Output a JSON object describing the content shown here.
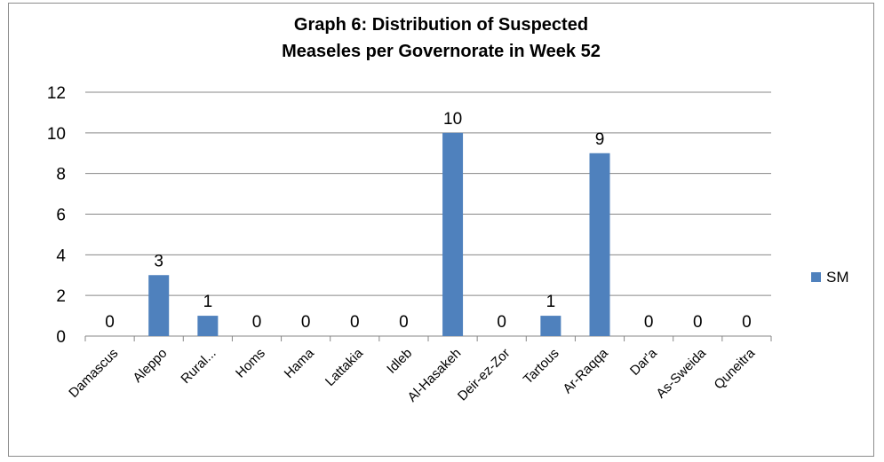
{
  "chart_data": {
    "type": "bar",
    "title_lines": [
      "Graph 6: Distribution of Suspected",
      "Measeles per Governorate in Week 52"
    ],
    "categories": [
      "Damascus",
      "Aleppo",
      "Rural...",
      "Homs",
      "Hama",
      "Lattakia",
      "Idleb",
      "Al-Hasakeh",
      "Deir-ez-Zor",
      "Tartous",
      "Ar-Raqqa",
      "Dar'a",
      "As-Sweida",
      "Quneitra"
    ],
    "series": [
      {
        "name": "SM",
        "values": [
          0,
          3,
          1,
          0,
          0,
          0,
          0,
          10,
          0,
          1,
          9,
          0,
          0,
          0
        ],
        "color": "#4f81bd"
      }
    ],
    "data_labels": [
      "0",
      "3",
      "1",
      "0",
      "0",
      "0",
      "0",
      "10",
      "0",
      "1",
      "9",
      "0",
      "0",
      "0"
    ],
    "yticks": [
      0,
      2,
      4,
      6,
      8,
      10,
      12
    ],
    "ylim": [
      0,
      12
    ],
    "grid": true,
    "legend": "right",
    "colors": {
      "bar": "#4f81bd",
      "grid": "#878787",
      "axis": "#878787",
      "text": "#000000"
    }
  }
}
